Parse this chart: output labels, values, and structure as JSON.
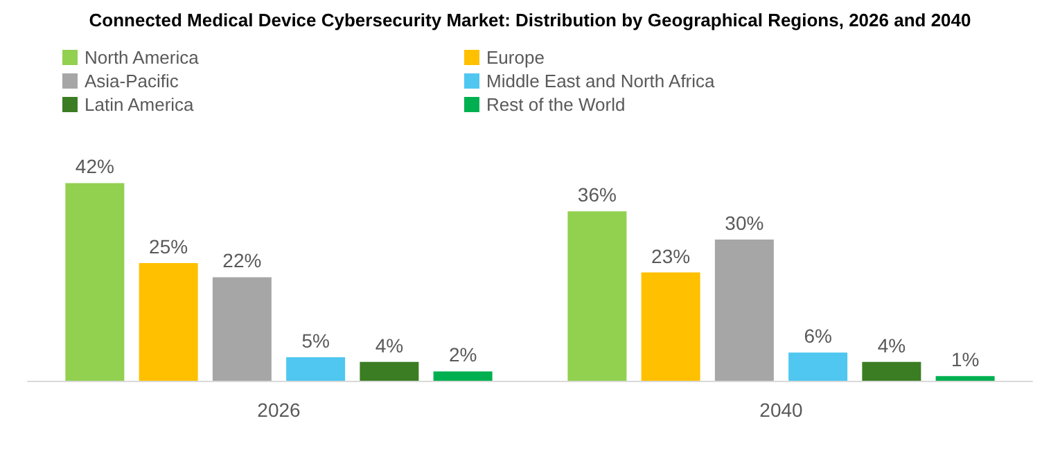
{
  "chart_data": {
    "type": "bar",
    "title": "Connected Medical Device Cybersecurity Market: Distribution by Geographical Regions, 2026 and 2040",
    "categories": [
      "2026",
      "2040"
    ],
    "series": [
      {
        "name": "North America",
        "color": "#92d050",
        "values": [
          42,
          36
        ],
        "value_labels": [
          "42%",
          "36%"
        ]
      },
      {
        "name": "Europe",
        "color": "#ffc000",
        "values": [
          25,
          23
        ],
        "value_labels": [
          "25%",
          "23%"
        ]
      },
      {
        "name": "Asia-Pacific",
        "color": "#a6a6a6",
        "values": [
          22,
          30
        ],
        "value_labels": [
          "22%",
          "30%"
        ]
      },
      {
        "name": "Middle East and North Africa",
        "color": "#4fc7f0",
        "values": [
          5,
          6
        ],
        "value_labels": [
          "5%",
          "6%"
        ]
      },
      {
        "name": "Latin America",
        "color": "#3b7d23",
        "values": [
          4,
          4
        ],
        "value_labels": [
          "4%",
          "4%"
        ]
      },
      {
        "name": "Rest of the World",
        "color": "#00b050",
        "values": [
          2,
          1
        ],
        "value_labels": [
          "2%",
          "1%"
        ]
      }
    ],
    "legend": "top left"
  }
}
